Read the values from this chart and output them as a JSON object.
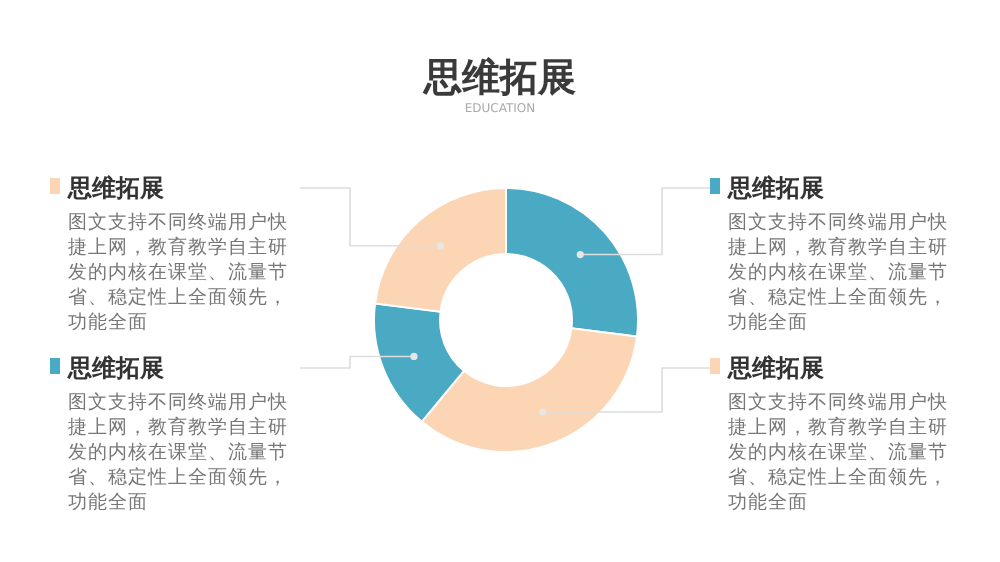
{
  "chart_data": {
    "type": "donut",
    "title": "思维拓展",
    "subtitle": "EDUCATION",
    "categories": [
      "思维拓展",
      "思维拓展",
      "思维拓展",
      "思维拓展"
    ],
    "values": [
      27,
      34,
      16,
      23
    ],
    "colors": [
      "#4aa9c3",
      "#fcd6b4",
      "#4aa9c3",
      "#fcd6b4"
    ],
    "annotations": [
      "图文支持不同终端用户快捷上网，教育教学自主研发的内核在课堂、流量节省、稳定性上全面领先，功能全面",
      "图文支持不同终端用户快捷上网，教育教学自主研发的内核在课堂、流量节省、稳定性上全面领先，功能全面",
      "图文支持不同终端用户快捷上网，教育教学自主研发的内核在课堂、流量节省、稳定性上全面领先，功能全面",
      "图文支持不同终端用户快捷上网，教育教学自主研发的内核在课堂、流量节省、稳定性上全面领先，功能全面"
    ]
  }
}
